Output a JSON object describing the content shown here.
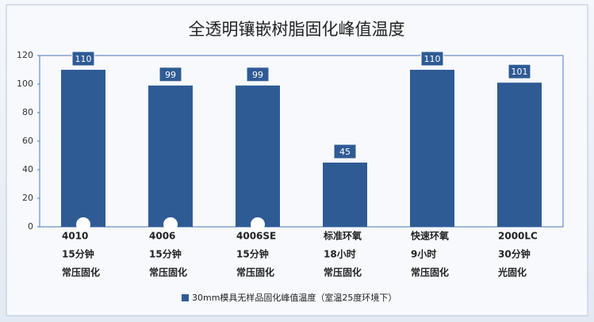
{
  "chart_data": {
    "type": "bar",
    "title": "全透明镶嵌树脂固化峰值温度",
    "categories": [
      [
        "4010",
        "15分钟",
        "常压固化"
      ],
      [
        "4006",
        "15分钟",
        "常压固化"
      ],
      [
        "4006SE",
        "15分钟",
        "常压固化"
      ],
      [
        "标准环氧",
        "18小时",
        "常压固化"
      ],
      [
        "快速环氧",
        "9小时",
        "常压固化"
      ],
      [
        "2000LC",
        "30分钟",
        "光固化"
      ]
    ],
    "series": [
      {
        "name": "30mm模具无样品固化峰值温度（室温25度环境下）",
        "color": "#2f5b95",
        "values": [
          110,
          99,
          99,
          45,
          110,
          101
        ]
      }
    ],
    "ylim": [
      0,
      120
    ],
    "yticks": [
      0,
      20,
      40,
      60,
      80,
      100,
      120
    ],
    "grid": false
  }
}
